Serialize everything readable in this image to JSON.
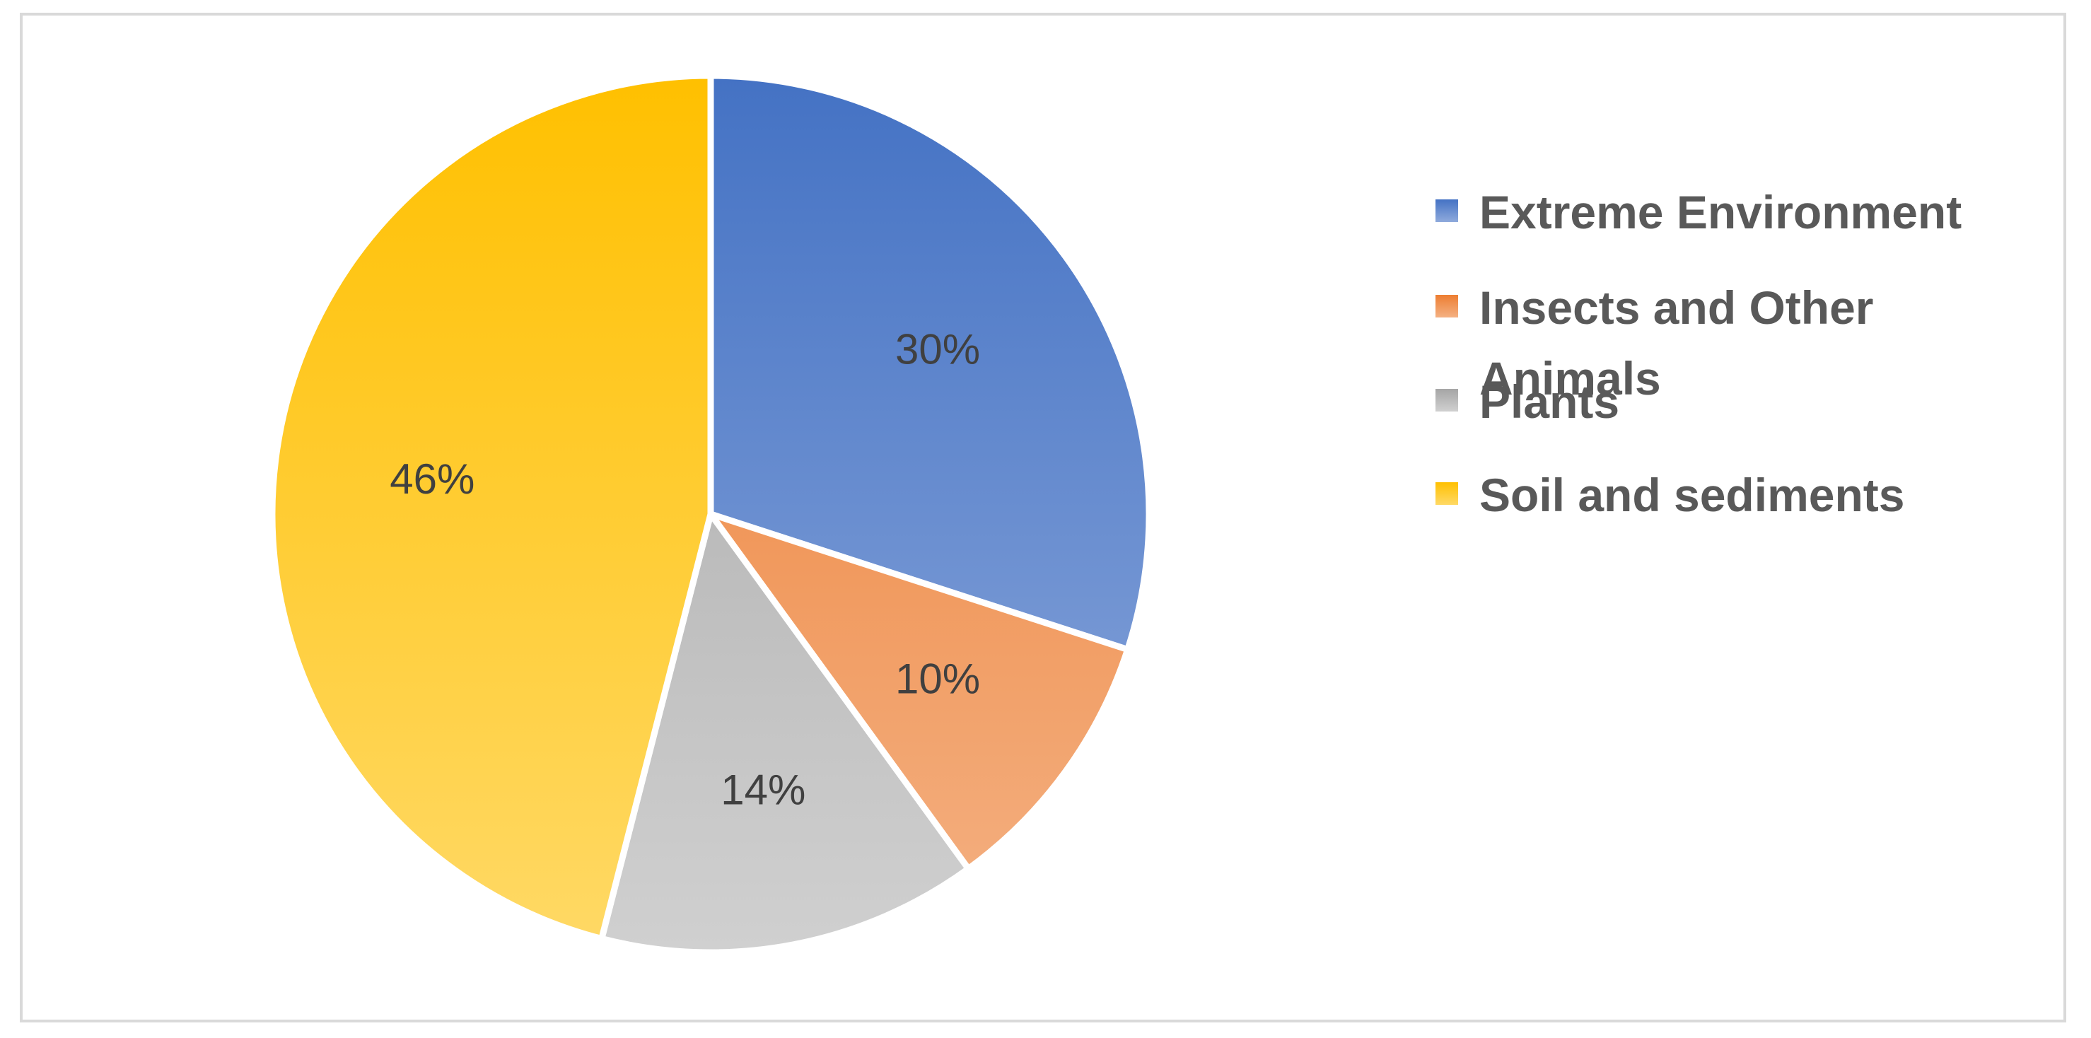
{
  "chart_data": {
    "type": "pie",
    "title": "",
    "categories": [
      "Extreme Environment",
      "Insects and Other Animals",
      "Plants",
      "Soil and sediments"
    ],
    "values": [
      30,
      10,
      14,
      46
    ],
    "labels": [
      "30%",
      "10%",
      "14%",
      "46%"
    ],
    "colors": [
      {
        "top": "#4472c4",
        "bottom": "#8faadc"
      },
      {
        "top": "#ed7d31",
        "bottom": "#f4b183"
      },
      {
        "top": "#a5a5a5",
        "bottom": "#d0d0d0"
      },
      {
        "top": "#ffc000",
        "bottom": "#ffd966"
      }
    ],
    "legend_position": "right",
    "start_angle_deg": 0,
    "direction": "clockwise"
  }
}
